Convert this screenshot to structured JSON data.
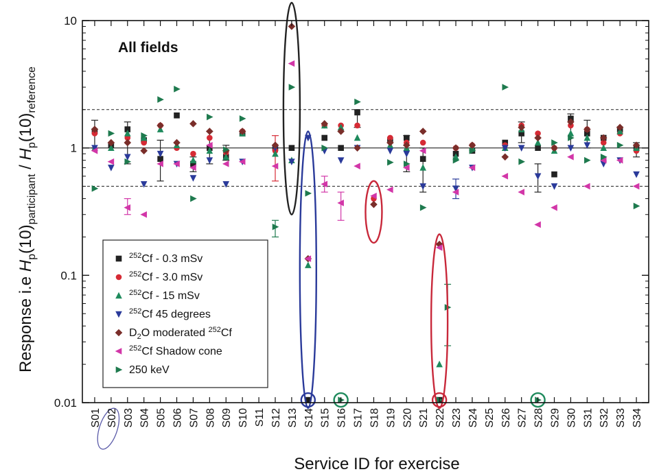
{
  "chart_data": {
    "type": "scatter",
    "inset_label": "All fields",
    "xlabel": "Service ID for exercise",
    "ylabel_parts": [
      "Response i.e ",
      "H",
      "p",
      "(10)",
      "participant",
      " / ",
      "H",
      "p",
      "(10)",
      "reference"
    ],
    "yscale": "log",
    "ylim": [
      0.01,
      10
    ],
    "yticks": [
      0.01,
      0.1,
      1,
      10
    ],
    "ytick_labels": [
      "0.01",
      "0.1",
      "1",
      "10"
    ],
    "reference_lines": [
      {
        "y": 1,
        "style": "solid"
      },
      {
        "y": 2,
        "style": "dashed"
      },
      {
        "y": 0.5,
        "style": "dashed"
      }
    ],
    "categories": [
      "S01",
      "S02",
      "S03",
      "S04",
      "S05",
      "S06",
      "S07",
      "S08",
      "S09",
      "S10",
      "S11",
      "S12",
      "S13",
      "S14",
      "S15",
      "S16",
      "S17",
      "S18",
      "S19",
      "S20",
      "S21",
      "S22",
      "S23",
      "S24",
      "S25",
      "S26",
      "S27",
      "S28",
      "S29",
      "S30",
      "S31",
      "S32",
      "S33",
      "S34"
    ],
    "series": [
      {
        "name": "252Cf - 0.3 mSv",
        "sup": "252",
        "rest": "Cf  - 0.3 mSv",
        "marker": "square",
        "color": "#222222",
        "points": [
          [
            "S01",
            1.35
          ],
          [
            "S02",
            1.05
          ],
          [
            "S03",
            1.4
          ],
          [
            "S04",
            1.15
          ],
          [
            "S05",
            0.82
          ],
          [
            "S06",
            1.8
          ],
          [
            "S07",
            0.75
          ],
          [
            "S08",
            1.0
          ],
          [
            "S09",
            0.85
          ],
          [
            "S10",
            1.3
          ],
          [
            "S12",
            1.0
          ],
          [
            "S13",
            1.0
          ],
          [
            "S14",
            0.0105
          ],
          [
            "S15",
            1.2
          ],
          [
            "S16",
            1.0
          ],
          [
            "S17",
            1.9
          ],
          [
            "S19",
            1.15
          ],
          [
            "S20",
            1.2
          ],
          [
            "S21",
            0.82
          ],
          [
            "S22",
            0.0105
          ],
          [
            "S23",
            0.9
          ],
          [
            "S24",
            0.95
          ],
          [
            "S26",
            1.1
          ],
          [
            "S27",
            1.3
          ],
          [
            "S28",
            1.0
          ],
          [
            "S29",
            0.62
          ],
          [
            "S30",
            1.7
          ],
          [
            "S31",
            1.3
          ],
          [
            "S32",
            1.2
          ],
          [
            "S33",
            1.4
          ],
          [
            "S34",
            1.0
          ]
        ]
      },
      {
        "name": "252Cf - 3.0 mSv",
        "sup": "252",
        "rest": "Cf - 3.0 mSv",
        "marker": "circle",
        "color": "#d62b35",
        "points": [
          [
            "S01",
            1.3
          ],
          [
            "S03",
            1.2
          ],
          [
            "S04",
            1.1
          ],
          [
            "S05",
            1.5
          ],
          [
            "S06",
            1.0
          ],
          [
            "S07",
            0.9
          ],
          [
            "S08",
            1.2
          ],
          [
            "S09",
            0.92
          ],
          [
            "S10",
            1.35
          ],
          [
            "S12",
            0.95
          ],
          [
            "S15",
            1.5
          ],
          [
            "S16",
            1.5
          ],
          [
            "S17",
            1.5
          ],
          [
            "S18",
            0.4
          ],
          [
            "S19",
            1.2
          ],
          [
            "S20",
            1.1
          ],
          [
            "S21",
            1.1
          ],
          [
            "S23",
            1.0
          ],
          [
            "S24",
            1.05
          ],
          [
            "S26",
            1.05
          ],
          [
            "S27",
            1.5
          ],
          [
            "S28",
            1.3
          ],
          [
            "S29",
            1.0
          ],
          [
            "S30",
            1.5
          ],
          [
            "S31",
            1.4
          ],
          [
            "S32",
            1.1
          ],
          [
            "S33",
            1.3
          ],
          [
            "S34",
            0.95
          ]
        ]
      },
      {
        "name": "252Cf - 15 mSv",
        "sup": "252",
        "rest": "Cf - 15 mSv",
        "marker": "triangle-up",
        "color": "#1e8a5c",
        "points": [
          [
            "S01",
            1.0
          ],
          [
            "S02",
            1.0
          ],
          [
            "S03",
            1.3
          ],
          [
            "S04",
            1.2
          ],
          [
            "S05",
            1.4
          ],
          [
            "S06",
            1.05
          ],
          [
            "S07",
            0.8
          ],
          [
            "S08",
            0.95
          ],
          [
            "S09",
            0.85
          ],
          [
            "S10",
            1.3
          ],
          [
            "S12",
            0.9
          ],
          [
            "S13",
            0.8
          ],
          [
            "S14",
            0.12
          ],
          [
            "S15",
            1.5
          ],
          [
            "S16",
            1.45
          ],
          [
            "S17",
            1.2
          ],
          [
            "S19",
            1.05
          ],
          [
            "S20",
            1.0
          ],
          [
            "S21",
            0.7
          ],
          [
            "S22",
            0.02
          ],
          [
            "S23",
            0.85
          ],
          [
            "S24",
            1.0
          ],
          [
            "S26",
            1.0
          ],
          [
            "S27",
            1.4
          ],
          [
            "S28",
            1.1
          ],
          [
            "S29",
            0.95
          ],
          [
            "S30",
            1.3
          ],
          [
            "S31",
            1.2
          ],
          [
            "S32",
            1.0
          ],
          [
            "S33",
            1.35
          ],
          [
            "S34",
            1.0
          ]
        ]
      },
      {
        "name": "252Cf 45 degrees",
        "sup": "252",
        "rest": "Cf 45 degrees",
        "marker": "triangle-down",
        "color": "#2a3a9a",
        "points": [
          [
            "S01",
            1.0
          ],
          [
            "S02",
            0.7
          ],
          [
            "S03",
            0.85
          ],
          [
            "S04",
            0.52
          ],
          [
            "S05",
            0.9
          ],
          [
            "S06",
            0.75
          ],
          [
            "S07",
            0.58
          ],
          [
            "S08",
            0.8
          ],
          [
            "S09",
            0.52
          ],
          [
            "S10",
            0.78
          ],
          [
            "S12",
            1.0
          ],
          [
            "S13",
            0.78
          ],
          [
            "S14",
            1.2
          ],
          [
            "S15",
            0.95
          ],
          [
            "S16",
            0.8
          ],
          [
            "S17",
            1.0
          ],
          [
            "S19",
            0.95
          ],
          [
            "S20",
            0.9
          ],
          [
            "S21",
            0.5
          ],
          [
            "S22",
            0.17
          ],
          [
            "S23",
            0.48
          ],
          [
            "S24",
            0.7
          ],
          [
            "S26",
            1.0
          ],
          [
            "S27",
            1.0
          ],
          [
            "S28",
            0.6
          ],
          [
            "S29",
            0.5
          ],
          [
            "S30",
            1.0
          ],
          [
            "S31",
            1.05
          ],
          [
            "S32",
            0.75
          ],
          [
            "S33",
            0.8
          ],
          [
            "S34",
            0.62
          ]
        ]
      },
      {
        "name": "D2O moderated 252Cf",
        "marker": "diamond",
        "color": "#7a2e2a",
        "points": [
          [
            "S01",
            1.4
          ],
          [
            "S02",
            1.1
          ],
          [
            "S03",
            1.1
          ],
          [
            "S04",
            0.95
          ],
          [
            "S05",
            1.5
          ],
          [
            "S06",
            1.1
          ],
          [
            "S07",
            1.55
          ],
          [
            "S08",
            1.35
          ],
          [
            "S09",
            0.95
          ],
          [
            "S10",
            1.35
          ],
          [
            "S12",
            1.05
          ],
          [
            "S13",
            9.0
          ],
          [
            "S14",
            0.135
          ],
          [
            "S15",
            1.55
          ],
          [
            "S16",
            1.35
          ],
          [
            "S17",
            1.0
          ],
          [
            "S18",
            0.36
          ],
          [
            "S19",
            1.1
          ],
          [
            "S20",
            1.05
          ],
          [
            "S21",
            1.35
          ],
          [
            "S22",
            0.175
          ],
          [
            "S23",
            1.0
          ],
          [
            "S24",
            1.05
          ],
          [
            "S26",
            0.85
          ],
          [
            "S27",
            1.45
          ],
          [
            "S28",
            1.2
          ],
          [
            "S29",
            1.0
          ],
          [
            "S30",
            1.6
          ],
          [
            "S31",
            1.4
          ],
          [
            "S32",
            1.2
          ],
          [
            "S33",
            1.45
          ],
          [
            "S34",
            1.05
          ]
        ]
      },
      {
        "name": "252Cf Shadow cone",
        "sup": "252",
        "rest": "Cf Shadow cone",
        "marker": "triangle-left",
        "color": "#d236a8",
        "points": [
          [
            "S01",
            0.95
          ],
          [
            "S02",
            0.78
          ],
          [
            "S03",
            0.34
          ],
          [
            "S04",
            0.3
          ],
          [
            "S05",
            0.75
          ],
          [
            "S06",
            0.75
          ],
          [
            "S07",
            0.7
          ],
          [
            "S08",
            1.05
          ],
          [
            "S09",
            0.75
          ],
          [
            "S10",
            0.78
          ],
          [
            "S12",
            0.72
          ],
          [
            "S13",
            4.6
          ],
          [
            "S14",
            0.135
          ],
          [
            "S15",
            0.52
          ],
          [
            "S16",
            0.37
          ],
          [
            "S17",
            0.72
          ],
          [
            "S18",
            0.42
          ],
          [
            "S19",
            0.47
          ],
          [
            "S20",
            0.7
          ],
          [
            "S21",
            0.95
          ],
          [
            "S22",
            0.165
          ],
          [
            "S23",
            0.45
          ],
          [
            "S24",
            0.7
          ],
          [
            "S26",
            0.6
          ],
          [
            "S27",
            0.45
          ],
          [
            "S28",
            0.25
          ],
          [
            "S29",
            0.34
          ],
          [
            "S30",
            0.85
          ],
          [
            "S31",
            0.5
          ],
          [
            "S32",
            0.8
          ],
          [
            "S33",
            0.8
          ],
          [
            "S34",
            0.5
          ]
        ]
      },
      {
        "name": "250 keV",
        "marker": "triangle-right",
        "color": "#1e7a4e",
        "points": [
          [
            "S01",
            0.48
          ],
          [
            "S02",
            1.3
          ],
          [
            "S03",
            0.78
          ],
          [
            "S04",
            1.25
          ],
          [
            "S05",
            2.4
          ],
          [
            "S06",
            2.9
          ],
          [
            "S07",
            0.4
          ],
          [
            "S08",
            1.75
          ],
          [
            "S09",
            0.97
          ],
          [
            "S10",
            1.7
          ],
          [
            "S12",
            0.24
          ],
          [
            "S13",
            3.0
          ],
          [
            "S14",
            0.44
          ],
          [
            "S15",
            1.0
          ],
          [
            "S16",
            0.0105
          ],
          [
            "S17",
            2.3
          ],
          [
            "S19",
            0.77
          ],
          [
            "S20",
            0.75
          ],
          [
            "S21",
            0.34
          ],
          [
            "S22",
            0.0105
          ],
          [
            "S23",
            0.8
          ],
          [
            "S24",
            0.95
          ],
          [
            "S26",
            3.0
          ],
          [
            "S27",
            0.78
          ],
          [
            "S28",
            0.0105
          ],
          [
            "S29",
            1.1
          ],
          [
            "S30",
            1.2
          ],
          [
            "S31",
            0.8
          ],
          [
            "S32",
            0.85
          ],
          [
            "S33",
            1.05
          ],
          [
            "S34",
            0.35
          ]
        ]
      }
    ],
    "error_bars": [
      {
        "category": "S01",
        "low": 1.0,
        "high": 1.65,
        "color": "#222222"
      },
      {
        "category": "S03",
        "low": 0.75,
        "high": 1.6,
        "color": "#222222"
      },
      {
        "category": "S03",
        "low": 0.3,
        "high": 0.4,
        "color": "#d236a8"
      },
      {
        "category": "S05",
        "low": 0.55,
        "high": 1.15,
        "color": "#222222"
      },
      {
        "category": "S07",
        "low": 0.65,
        "high": 0.85,
        "color": "#222222"
      },
      {
        "category": "S08",
        "low": 0.75,
        "high": 1.35,
        "color": "#222222"
      },
      {
        "category": "S09",
        "low": 0.8,
        "high": 1.05,
        "color": "#222222"
      },
      {
        "category": "S12",
        "low": 0.55,
        "high": 1.25,
        "color": "#d62b35"
      },
      {
        "category": "S12",
        "low": 0.2,
        "high": 0.27,
        "color": "#1e7a4e"
      },
      {
        "category": "S15",
        "low": 0.45,
        "high": 0.6,
        "color": "#d236a8"
      },
      {
        "category": "S16",
        "low": 0.27,
        "high": 0.45,
        "color": "#d236a8"
      },
      {
        "category": "S17",
        "low": 1.45,
        "high": 2.0,
        "color": "#222222"
      },
      {
        "category": "S20",
        "low": 0.65,
        "high": 1.25,
        "color": "#222222"
      },
      {
        "category": "S21",
        "low": 0.45,
        "high": 1.0,
        "color": "#222222"
      },
      {
        "category": "S23",
        "low": 0.4,
        "high": 0.57,
        "color": "#2a3a9a"
      },
      {
        "category": "S22.5",
        "low": 0.028,
        "high": 0.085,
        "color": "#1e7a4e"
      },
      {
        "category": "S27",
        "low": 1.1,
        "high": 1.6,
        "color": "#222222"
      },
      {
        "category": "S28",
        "low": 0.45,
        "high": 0.75,
        "color": "#222222"
      },
      {
        "category": "S30",
        "low": 1.0,
        "high": 1.85,
        "color": "#222222"
      },
      {
        "category": "S31",
        "low": 1.0,
        "high": 1.65,
        "color": "#222222"
      },
      {
        "category": "S34",
        "low": 0.85,
        "high": 1.1,
        "color": "#222222"
      }
    ],
    "extra_points": [
      {
        "category": "S22.5",
        "y": 0.056,
        "marker": "triangle-right",
        "color": "#1e7a4e"
      }
    ],
    "highlights": [
      {
        "type": "ellipse",
        "category": "S13",
        "ylow": 0.3,
        "yhigh": 14,
        "color": "#222222"
      },
      {
        "type": "ellipse",
        "category": "S14",
        "ylow": 0.009,
        "yhigh": 1.35,
        "color": "#2a3a9a"
      },
      {
        "type": "ellipse",
        "category": "S18",
        "ylow": 0.18,
        "yhigh": 0.55,
        "color": "#c8283a"
      },
      {
        "type": "ellipse",
        "category": "S22",
        "ylow": 0.009,
        "yhigh": 0.21,
        "color": "#c8283a"
      },
      {
        "type": "circle",
        "category": "S14",
        "y": 0.0105,
        "color": "#2a3a9a"
      },
      {
        "type": "circle",
        "category": "S16",
        "y": 0.0105,
        "color": "#1e8a5c"
      },
      {
        "type": "circle",
        "category": "S22",
        "y": 0.0105,
        "color": "#c8283a"
      },
      {
        "type": "circle",
        "category": "S28",
        "y": 0.0105,
        "color": "#1e8a5c"
      },
      {
        "type": "label-circle",
        "category": "S02",
        "color": "#5a5aa8"
      }
    ],
    "legend": {
      "placement": "bottom-left"
    }
  }
}
